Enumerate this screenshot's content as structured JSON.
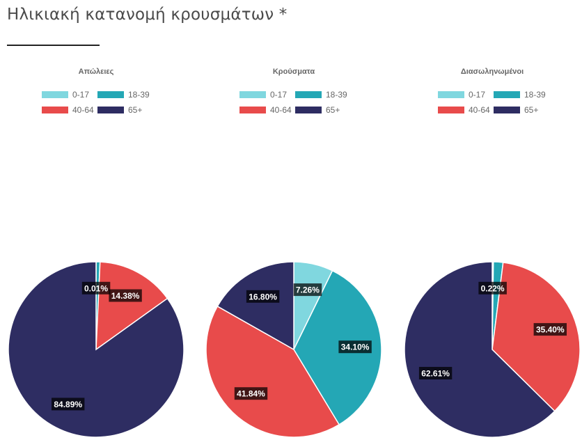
{
  "page_title": "Ηλικιακή κατανομή κρουσμάτων *",
  "colors": {
    "0-17": "#80d7df",
    "18-39": "#24a7b5",
    "40-64": "#e84b4b",
    "65+": "#2e2d62"
  },
  "chart_data": [
    {
      "type": "pie",
      "title": "Απώλειες",
      "legend": [
        "0-17",
        "18-39",
        "40-64",
        "65+"
      ],
      "values": [
        0.01,
        0.72,
        14.38,
        84.89
      ],
      "labels": [
        "0.01%",
        "",
        "14.38%",
        "84.89%"
      ]
    },
    {
      "type": "pie",
      "title": "Κρούσματα",
      "legend": [
        "0-17",
        "18-39",
        "40-64",
        "65+"
      ],
      "values": [
        7.26,
        34.1,
        41.84,
        16.8
      ],
      "labels": [
        "7.26%",
        "34.10%",
        "41.84%",
        "16.80%"
      ]
    },
    {
      "type": "pie",
      "title": "Διασωληνωμένοι",
      "legend": [
        "0-17",
        "18-39",
        "40-64",
        "65+"
      ],
      "values": [
        0.22,
        1.77,
        35.4,
        62.61
      ],
      "labels": [
        "0.22%",
        "",
        "35.40%",
        "62.61%"
      ]
    }
  ]
}
